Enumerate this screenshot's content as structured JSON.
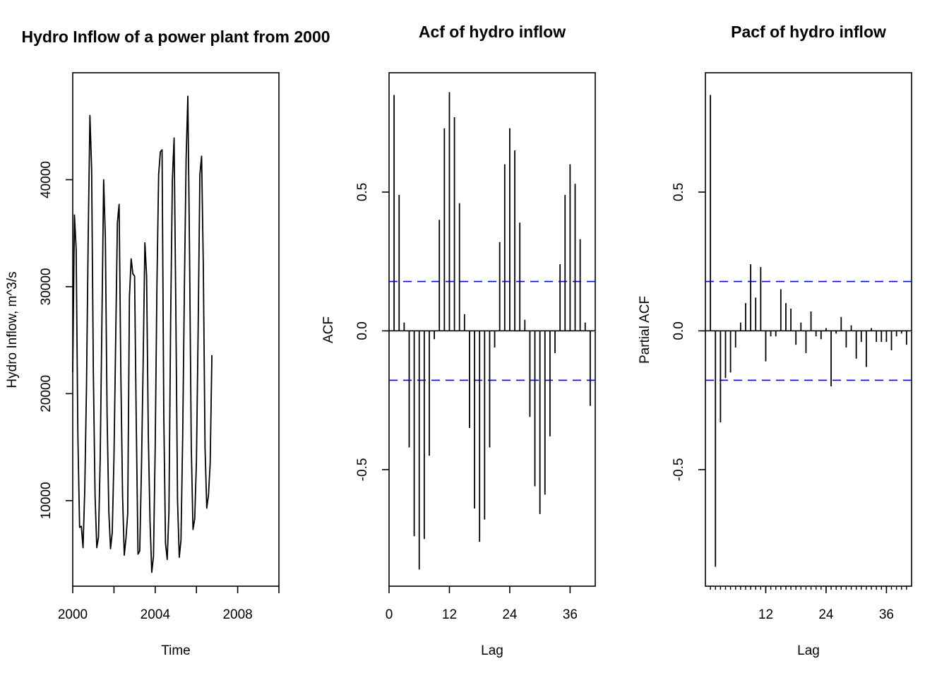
{
  "chart_data": [
    {
      "type": "line",
      "title": "Hydro Inflow of a power plant from 2000",
      "xlabel": "Time",
      "ylabel": "Hydro Inflow, m^3/s",
      "xlim": [
        2000,
        2010
      ],
      "ylim": [
        2000,
        50000
      ],
      "x_ticks": [
        2000,
        2002,
        2004,
        2006,
        2008,
        2010
      ],
      "x_tick_labels": [
        "2000",
        "",
        "2004",
        "",
        "2008",
        ""
      ],
      "y_ticks": [
        10000,
        20000,
        30000,
        40000
      ],
      "y_tick_labels": [
        "10000",
        "20000",
        "30000",
        "40000"
      ],
      "grid": false,
      "series": [
        {
          "color": "#000000",
          "x_start": 2000,
          "x_step": 0.083333,
          "values": [
            22000,
            36700,
            33500,
            16000,
            7500,
            7600,
            5600,
            11000,
            20500,
            34500,
            46000,
            41000,
            22000,
            10500,
            5600,
            6600,
            14000,
            27000,
            40000,
            34500,
            18000,
            9000,
            5500,
            7000,
            14000,
            25000,
            36000,
            37700,
            22000,
            10500,
            4900,
            6500,
            8800,
            29000,
            32600,
            31200,
            31000,
            17000,
            5000,
            5300,
            13000,
            23000,
            34100,
            31000,
            16000,
            8000,
            3300,
            4800,
            15000,
            30000,
            40500,
            42600,
            42800,
            18000,
            6000,
            4500,
            9000,
            27000,
            40000,
            43900,
            28000,
            10000,
            4700,
            6300,
            16000,
            30000,
            42000,
            47800,
            33000,
            15000,
            7300,
            8300,
            13700,
            26000,
            40500,
            42200,
            32000,
            15000,
            9300,
            10500,
            13500,
            23600
          ]
        }
      ]
    },
    {
      "type": "bar",
      "title": "Acf of hydro inflow",
      "xlabel": "Lag",
      "ylabel": "ACF",
      "xlim": [
        0,
        41
      ],
      "ylim": [
        -0.92,
        0.93
      ],
      "x_ticks": [
        0,
        12,
        24,
        36
      ],
      "x_tick_labels": [
        "0",
        "12",
        "24",
        "36"
      ],
      "y_ticks": [
        -0.5,
        0.0,
        0.5
      ],
      "y_tick_labels": [
        "-0.5",
        "0.0",
        "0.5"
      ],
      "lags": [
        1,
        2,
        3,
        4,
        5,
        6,
        7,
        8,
        9,
        10,
        11,
        12,
        13,
        14,
        15,
        16,
        17,
        18,
        19,
        20,
        21,
        22,
        23,
        24,
        25,
        26,
        27,
        28,
        29,
        30,
        31,
        32,
        33,
        34,
        35,
        36,
        37,
        38,
        39,
        40
      ],
      "values": [
        0.85,
        0.49,
        0.03,
        -0.42,
        -0.74,
        -0.86,
        -0.75,
        -0.45,
        -0.03,
        0.4,
        0.73,
        0.86,
        0.77,
        0.46,
        0.06,
        -0.35,
        -0.64,
        -0.76,
        -0.68,
        -0.42,
        -0.06,
        0.32,
        0.6,
        0.73,
        0.65,
        0.39,
        0.04,
        -0.31,
        -0.56,
        -0.66,
        -0.59,
        -0.38,
        -0.08,
        0.24,
        0.49,
        0.6,
        0.53,
        0.33,
        0.03,
        -0.27
      ],
      "confidence_band": [
        -0.178,
        0.178
      ],
      "band_color": "#0000ff",
      "bar_color": "#000000"
    },
    {
      "type": "bar",
      "title": "Pacf of hydro inflow",
      "xlabel": "Lag",
      "ylabel": "Partial ACF",
      "xlim": [
        0,
        41
      ],
      "ylim": [
        -0.92,
        0.93
      ],
      "x_ticks": [
        12,
        24,
        36
      ],
      "x_tick_labels": [
        "12",
        "24",
        "36"
      ],
      "y_ticks": [
        -0.5,
        0.0,
        0.5
      ],
      "y_tick_labels": [
        "-0.5",
        "0.0",
        "0.5"
      ],
      "lags": [
        1,
        2,
        3,
        4,
        5,
        6,
        7,
        8,
        9,
        10,
        11,
        12,
        13,
        14,
        15,
        16,
        17,
        18,
        19,
        20,
        21,
        22,
        23,
        24,
        25,
        26,
        27,
        28,
        29,
        30,
        31,
        32,
        33,
        34,
        35,
        36,
        37,
        38,
        39,
        40
      ],
      "values": [
        0.85,
        -0.85,
        -0.33,
        -0.17,
        -0.15,
        -0.06,
        0.03,
        0.1,
        0.24,
        0.12,
        0.23,
        -0.11,
        -0.02,
        -0.02,
        0.15,
        0.1,
        0.08,
        -0.05,
        0.03,
        -0.08,
        0.07,
        -0.02,
        -0.03,
        0.01,
        -0.2,
        -0.01,
        0.05,
        -0.06,
        0.02,
        -0.1,
        -0.04,
        -0.13,
        0.01,
        -0.04,
        -0.04,
        -0.04,
        -0.07,
        -0.02,
        -0.01,
        -0.05
      ],
      "confidence_band": [
        -0.178,
        0.178
      ],
      "band_color": "#0000ff",
      "bar_color": "#000000"
    }
  ]
}
